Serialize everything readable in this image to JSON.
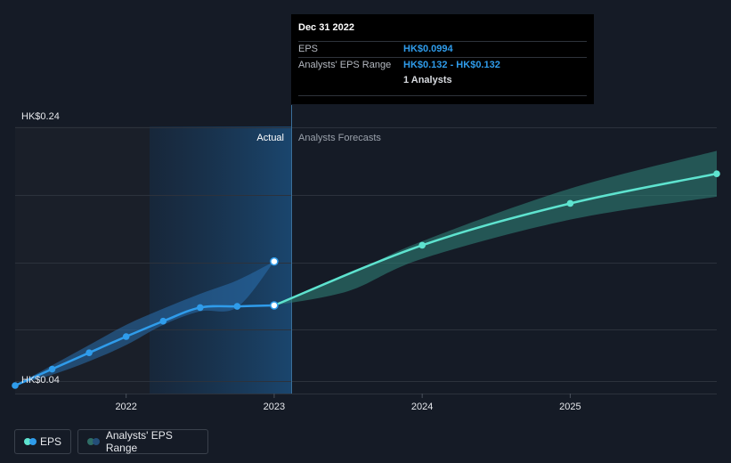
{
  "tooltip": {
    "date": "Dec 31 2022",
    "eps_label": "EPS",
    "eps_value": "HK$0.0994",
    "range_label": "Analysts' EPS Range",
    "range_value": "HK$0.132 - HK$0.132",
    "analysts": "1 Analysts"
  },
  "labels": {
    "actual": "Actual",
    "forecast": "Analysts Forecasts"
  },
  "legend": {
    "eps": "EPS",
    "range": "Analysts' EPS Range"
  },
  "colors": {
    "background": "#151b26",
    "eps_line": "#2f9ceb",
    "forecast_line": "#5ee3cf",
    "range_band_past": "#2a6fae",
    "range_band_future": "#2f7f74",
    "grid": "#2c323c"
  },
  "chart_data": {
    "type": "line",
    "y_tick_labels": [
      "HK$0.24",
      "HK$0.04"
    ],
    "ylim": [
      0.04,
      0.24
    ],
    "xlim": [
      2021.25,
      2025.99
    ],
    "x_tick_labels": [
      "2022",
      "2023",
      "2024",
      "2025"
    ],
    "x_ticks": [
      2022,
      2023,
      2024,
      2025
    ],
    "grid": true,
    "series": [
      {
        "name": "EPS",
        "points": [
          [
            2021.25,
            0.04
          ],
          [
            2021.5,
            0.0522
          ],
          [
            2021.75,
            0.0643
          ],
          [
            2022.0,
            0.0763
          ],
          [
            2022.25,
            0.0877
          ],
          [
            2022.5,
            0.0978
          ],
          [
            2022.75,
            0.0987
          ],
          [
            2023.0,
            0.0994
          ]
        ]
      },
      {
        "name": "EPS Forecast",
        "points": [
          [
            2023.0,
            0.0994
          ],
          [
            2024.0,
            0.144
          ],
          [
            2025.0,
            0.175
          ],
          [
            2025.99,
            0.197
          ]
        ]
      }
    ],
    "range_past": {
      "upper": [
        [
          2021.25,
          0.04
        ],
        [
          2021.5,
          0.055
        ],
        [
          2021.75,
          0.07
        ],
        [
          2022.0,
          0.085
        ],
        [
          2022.25,
          0.097
        ],
        [
          2022.5,
          0.108
        ],
        [
          2022.75,
          0.118
        ],
        [
          2023.0,
          0.132
        ]
      ],
      "lower": [
        [
          2023.0,
          0.132
        ],
        [
          2022.75,
          0.098
        ],
        [
          2022.5,
          0.095
        ],
        [
          2022.25,
          0.085
        ],
        [
          2022.0,
          0.07
        ],
        [
          2021.75,
          0.058
        ],
        [
          2021.5,
          0.048
        ],
        [
          2021.25,
          0.04
        ]
      ]
    },
    "range_future": {
      "upper": [
        [
          2023.0,
          0.0994
        ],
        [
          2023.5,
          0.122
        ],
        [
          2024.0,
          0.147
        ],
        [
          2025.0,
          0.186
        ],
        [
          2025.99,
          0.214
        ]
      ],
      "lower": [
        [
          2025.99,
          0.18
        ],
        [
          2025.0,
          0.163
        ],
        [
          2024.0,
          0.134
        ],
        [
          2023.5,
          0.11
        ],
        [
          2023.0,
          0.0994
        ]
      ]
    },
    "range_marker": [
      2023.0,
      0.132
    ],
    "current": 2023.0
  }
}
